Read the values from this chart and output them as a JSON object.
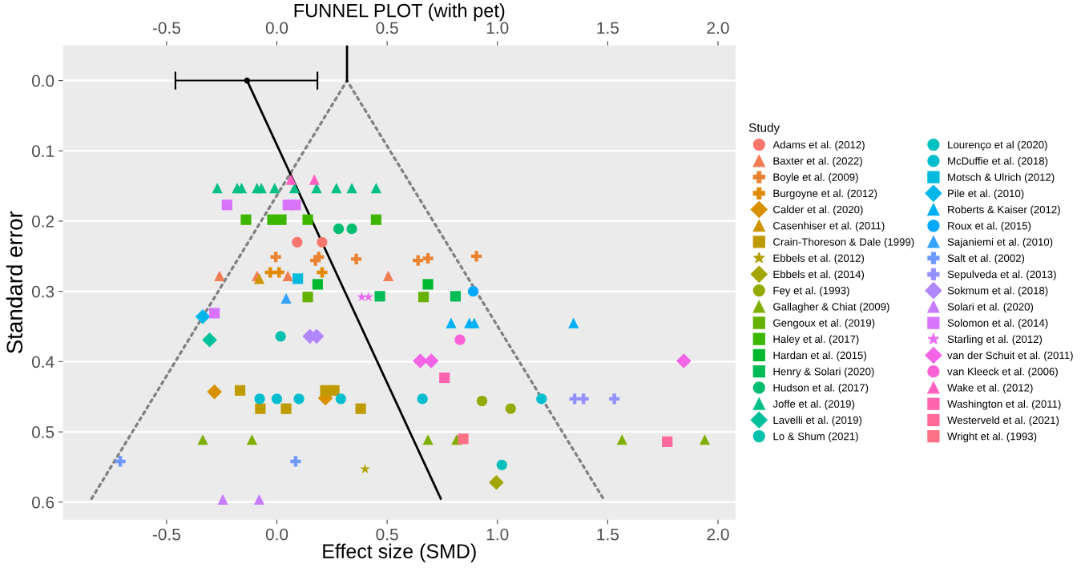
{
  "chart_data": {
    "type": "scatter",
    "x2label": "FUNNEL PLOT (with pet)",
    "xlabel": "Effect size (SMD)",
    "ylabel": "Standard error",
    "legend_title": "Study",
    "legend": "right",
    "grid": "y",
    "xlim": [
      -0.97,
      2.08
    ],
    "ylim": [
      0.625,
      -0.05
    ],
    "xticks": [
      {
        "value": -0.5,
        "label": "-0.5"
      },
      {
        "value": 0,
        "label": "0.0"
      },
      {
        "value": 0.5,
        "label": "0.5"
      },
      {
        "value": 1,
        "label": "1.0"
      },
      {
        "value": 1.5,
        "label": "1.5"
      },
      {
        "value": 2,
        "label": "2.0"
      }
    ],
    "x2lim": [
      -0.97,
      2.08
    ],
    "x2ticks": [
      {
        "value": -0.5,
        "label": "-0.5"
      },
      {
        "value": 0,
        "label": "0.0"
      },
      {
        "value": 0.5,
        "label": "0.5"
      },
      {
        "value": 1,
        "label": "1.0"
      },
      {
        "value": 1.5,
        "label": "1.5"
      },
      {
        "value": 2,
        "label": "2.0"
      }
    ],
    "yticks": [
      {
        "value": 0,
        "label": "0.0"
      },
      {
        "value": 0.1,
        "label": "0.1"
      },
      {
        "value": 0.2,
        "label": "0.2"
      },
      {
        "value": 0.3,
        "label": "0.3"
      },
      {
        "value": 0.4,
        "label": "0.4"
      },
      {
        "value": 0.5,
        "label": "0.5"
      },
      {
        "value": 0.6,
        "label": "0.6"
      }
    ],
    "series": [
      {
        "type": "line",
        "color": "#808080",
        "line_style": "dotted",
        "x": [
          -0.84,
          0.318,
          1.48
        ],
        "values": [
          0.595,
          0,
          0.595
        ]
      },
      {
        "type": "line",
        "color": "#000000",
        "line_style": "solid",
        "x": [
          -0.135,
          0.743
        ],
        "values": [
          0,
          0.595
        ]
      },
      {
        "type": "line",
        "color": "#000000",
        "line_style": "solid",
        "x": [
          0.318,
          0.318
        ],
        "values": [
          -0.05,
          0
        ]
      },
      {
        "type": "scatter",
        "color": "#000000",
        "marker": "circle",
        "x": [
          -0.135
        ],
        "values": [
          0
        ],
        "xerrors": [
          [
            -0.46,
            0.184
          ]
        ]
      },
      {
        "type": "scatter",
        "name": "Adams et al. (2012)",
        "color": "#F8766D",
        "marker": "circle",
        "x": [
          0.092,
          0.205
        ],
        "values": [
          0.23,
          0.23
        ]
      },
      {
        "type": "scatter",
        "name": "Baxter et al. (2022)",
        "color": "#F27D52",
        "marker": "triangle",
        "x": [
          -0.26,
          -0.09,
          0.05,
          0.505
        ],
        "values": [
          0.278,
          0.278,
          0.278,
          0.278
        ]
      },
      {
        "type": "scatter",
        "name": "Boyle et al. (2009)",
        "color": "#EA8331",
        "marker": "cross",
        "x": [
          -0.005,
          0.175,
          0.19,
          0.36,
          0.64,
          0.685,
          0.905
        ],
        "values": [
          0.251,
          0.256,
          0.251,
          0.254,
          0.256,
          0.253,
          0.25
        ]
      },
      {
        "type": "scatter",
        "name": "Burgoyne et al. (2012)",
        "color": "#E18A00",
        "marker": "cross",
        "x": [
          -0.03,
          0.01,
          0.205
        ],
        "values": [
          0.273,
          0.273,
          0.273
        ]
      },
      {
        "type": "scatter",
        "name": "Calder et al. (2020)",
        "color": "#D89000",
        "marker": "diamond",
        "x": [
          -0.283,
          0.22
        ],
        "values": [
          0.443,
          0.452
        ]
      },
      {
        "type": "scatter",
        "name": "Casenhiser et al. (2011)",
        "color": "#CD9600",
        "marker": "triangle",
        "x": [
          -0.08
        ],
        "values": [
          0.282
        ]
      },
      {
        "type": "scatter",
        "name": "Crain-Thoreson & Dale (1999)",
        "color": "#C09B00",
        "marker": "square",
        "x": [
          -0.167,
          0.22,
          0.26,
          -0.075,
          0.042,
          0.38
        ],
        "values": [
          0.441,
          0.441,
          0.441,
          0.467,
          0.467,
          0.467
        ]
      },
      {
        "type": "scatter",
        "name": "Ebbels et al. (2012)",
        "color": "#B3A000",
        "marker": "star",
        "x": [
          0.4
        ],
        "values": [
          0.553
        ]
      },
      {
        "type": "scatter",
        "name": "Ebbels et al. (2014)",
        "color": "#A3A500",
        "marker": "diamond",
        "x": [
          0.995
        ],
        "values": [
          0.572
        ]
      },
      {
        "type": "scatter",
        "name": "Fey et al. (1993)",
        "color": "#93AA00",
        "marker": "circle",
        "x": [
          0.93,
          1.06
        ],
        "values": [
          0.456,
          0.467
        ]
      },
      {
        "type": "scatter",
        "name": "Gallagher & Chiat (2009)",
        "color": "#7FAE00",
        "marker": "triangle",
        "x": [
          -0.336,
          -0.113,
          0.685,
          0.815,
          1.565,
          1.94
        ],
        "values": [
          0.511,
          0.511,
          0.511,
          0.511,
          0.511,
          0.511
        ]
      },
      {
        "type": "scatter",
        "name": "Gengoux et al. (2019)",
        "color": "#66B200",
        "marker": "square",
        "x": [
          0.14,
          0.665
        ],
        "values": [
          0.308,
          0.308
        ]
      },
      {
        "type": "scatter",
        "name": "Haley et al. (2017)",
        "color": "#3DB600",
        "marker": "square",
        "x": [
          -0.14,
          -0.02,
          0.02,
          0.14,
          0.45
        ],
        "values": [
          0.198,
          0.198,
          0.198,
          0.198,
          0.198
        ]
      },
      {
        "type": "scatter",
        "name": "Hardan et al. (2015)",
        "color": "#00B92E",
        "marker": "square",
        "x": [
          0.185,
          0.685
        ],
        "values": [
          0.29,
          0.29
        ]
      },
      {
        "type": "scatter",
        "name": "Henry & Solari (2020)",
        "color": "#00BC56",
        "marker": "square",
        "x": [
          0.467,
          0.81
        ],
        "values": [
          0.307,
          0.307
        ]
      },
      {
        "type": "scatter",
        "name": "Hudson et al. (2017)",
        "color": "#00BE70",
        "marker": "circle",
        "x": [
          0.28,
          0.34
        ],
        "values": [
          0.211,
          0.211
        ]
      },
      {
        "type": "scatter",
        "name": "Joffe et al. (2019)",
        "color": "#00C086",
        "marker": "triangle",
        "x": [
          -0.27,
          -0.18,
          -0.16,
          -0.09,
          -0.07,
          -0.01,
          0.08,
          0.18,
          0.27,
          0.34,
          0.45
        ],
        "values": [
          0.153,
          0.153,
          0.153,
          0.153,
          0.153,
          0.153,
          0.153,
          0.153,
          0.153,
          0.153,
          0.153
        ]
      },
      {
        "type": "scatter",
        "name": "Lavelli et al. (2019)",
        "color": "#00C19A",
        "marker": "diamond",
        "x": [
          -0.305
        ],
        "values": [
          0.369
        ]
      },
      {
        "type": "scatter",
        "name": "Lo & Shum (2021)",
        "color": "#00C1AD",
        "marker": "circle",
        "x": [
          0.017
        ],
        "values": [
          0.364
        ]
      },
      {
        "type": "scatter",
        "name": "Lourenço et al (2020)",
        "color": "#00C0BE",
        "marker": "circle",
        "x": [
          1.02
        ],
        "values": [
          0.547
        ]
      },
      {
        "type": "scatter",
        "name": "McDuffie et al. (2018)",
        "color": "#00BECF",
        "marker": "circle",
        "x": [
          -0.078,
          0.0,
          0.1,
          0.29,
          0.66,
          1.2
        ],
        "values": [
          0.453,
          0.453,
          0.453,
          0.453,
          0.453,
          0.453
        ]
      },
      {
        "type": "scatter",
        "name": "Motsch & Ulrich (2012)",
        "color": "#00BBDD",
        "marker": "square",
        "x": [
          0.095
        ],
        "values": [
          0.282
        ]
      },
      {
        "type": "scatter",
        "name": "Pile et al. (2010)",
        "color": "#00B6EB",
        "marker": "diamond",
        "x": [
          -0.336
        ],
        "values": [
          0.336
        ]
      },
      {
        "type": "scatter",
        "name": "Roberts & Kaiser (2012)",
        "color": "#00B0F6",
        "marker": "triangle",
        "x": [
          0.79,
          0.873,
          0.895,
          1.345
        ],
        "values": [
          0.345,
          0.345,
          0.345,
          0.345
        ]
      },
      {
        "type": "scatter",
        "name": "Roux et al. (2015)",
        "color": "#00A9FF",
        "marker": "circle",
        "x": [
          0.89
        ],
        "values": [
          0.3
        ]
      },
      {
        "type": "scatter",
        "name": "Sajaniemi et al. (2010)",
        "color": "#35A2FF",
        "marker": "triangle",
        "x": [
          0.042
        ],
        "values": [
          0.31
        ]
      },
      {
        "type": "scatter",
        "name": "Salt et al. (2002)",
        "color": "#7099FF",
        "marker": "cross",
        "x": [
          -0.71,
          0.085
        ],
        "values": [
          0.542,
          0.542
        ]
      },
      {
        "type": "scatter",
        "name": "Sepulveda et al. (2013)",
        "color": "#9590FF",
        "marker": "cross",
        "x": [
          1.35,
          1.39,
          1.53
        ],
        "values": [
          0.453,
          0.453,
          0.453
        ]
      },
      {
        "type": "scatter",
        "name": "Sokmum et al. (2018)",
        "color": "#B186FF",
        "marker": "diamond",
        "x": [
          0.15,
          0.18
        ],
        "values": [
          0.364,
          0.364
        ]
      },
      {
        "type": "scatter",
        "name": "Solari et al. (2020)",
        "color": "#C77CFF",
        "marker": "triangle",
        "x": [
          -0.245,
          -0.08
        ],
        "values": [
          0.596,
          0.596
        ]
      },
      {
        "type": "scatter",
        "name": "Solomon et al. (2014)",
        "color": "#D973FC",
        "marker": "square",
        "x": [
          -0.226,
          0.05,
          0.085,
          -0.283
        ],
        "values": [
          0.177,
          0.177,
          0.177,
          0.331
        ]
      },
      {
        "type": "scatter",
        "name": "Starling et al. (2012)",
        "color": "#E76BF3",
        "marker": "star",
        "x": [
          0.385,
          0.415
        ],
        "values": [
          0.308,
          0.308
        ]
      },
      {
        "type": "scatter",
        "name": "van der Schuit et al. (2011)",
        "color": "#F365E6",
        "marker": "diamond",
        "x": [
          0.65,
          0.7,
          1.845
        ],
        "values": [
          0.399,
          0.399,
          0.399
        ]
      },
      {
        "type": "scatter",
        "name": "van Kleeck et al. (2006)",
        "color": "#FC61D5",
        "marker": "circle",
        "x": [
          0.83
        ],
        "values": [
          0.369
        ]
      },
      {
        "type": "scatter",
        "name": "Wake et al. (2012)",
        "color": "#FF61C3",
        "marker": "triangle",
        "x": [
          0.064,
          0.17
        ],
        "values": [
          0.141,
          0.141
        ]
      },
      {
        "type": "scatter",
        "name": "Washington et al. (2011)",
        "color": "#FF64B0",
        "marker": "square",
        "x": [
          0.76
        ],
        "values": [
          0.423
        ]
      },
      {
        "type": "scatter",
        "name": "Westerveld et al. (2021)",
        "color": "#FF6A9A",
        "marker": "square",
        "x": [
          1.77
        ],
        "values": [
          0.514
        ]
      },
      {
        "type": "scatter",
        "name": "Wright et al. (1993)",
        "color": "#FC7183",
        "marker": "square",
        "x": [
          0.845
        ],
        "values": [
          0.51
        ]
      }
    ]
  }
}
